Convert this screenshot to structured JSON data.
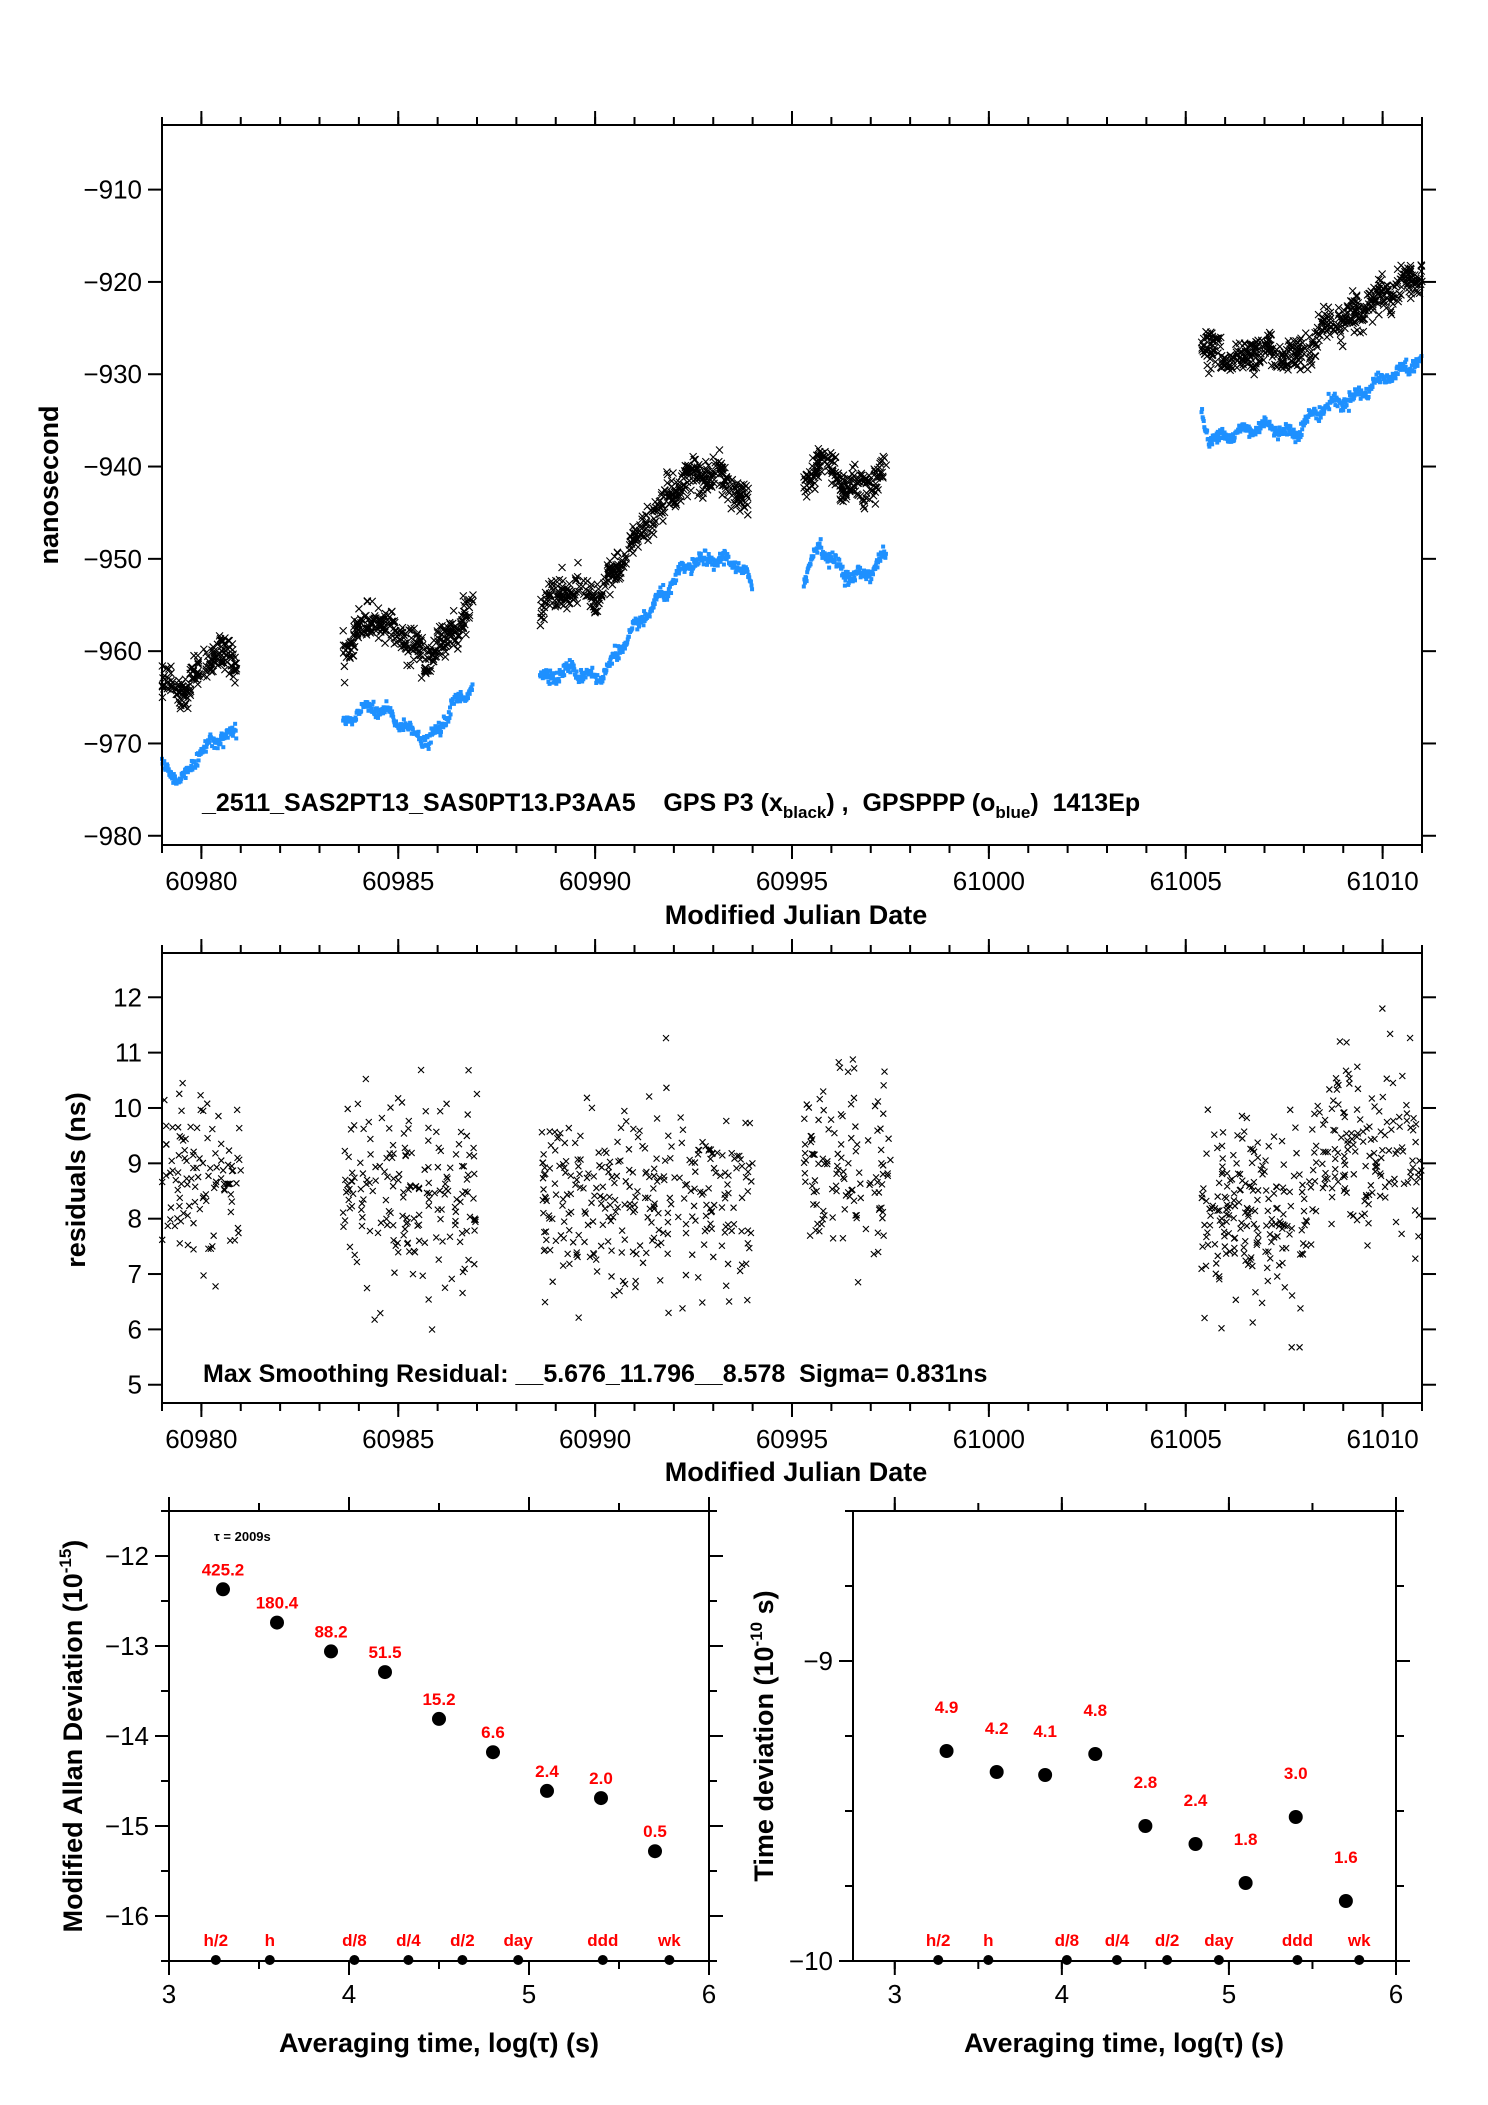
{
  "chart_data": [
    {
      "id": "phase",
      "type": "scatter",
      "title": "",
      "xlabel": "Modified Julian Date",
      "ylabel": "nanosecond",
      "xlim": [
        60979.0,
        61011.0
      ],
      "ylim": [
        -981,
        -903
      ],
      "xticks": [
        60980,
        60985,
        60990,
        60995,
        61000,
        61005,
        61010
      ],
      "xtick_labels": [
        "60980",
        "60985",
        "60990",
        "60995",
        "61000",
        "61005",
        "61010"
      ],
      "yticks": [
        -910,
        -920,
        -930,
        -940,
        -950,
        -960,
        -970,
        -980
      ],
      "ytick_labels": [
        "−910",
        "−920",
        "−930",
        "−940",
        "−950",
        "−960",
        "−970",
        "−980"
      ],
      "annotation": {
        "prefix": "_2511_SAS2PT13_SAS0PT13.P3AA5    GPS P3 (x",
        "sub1": "black",
        "mid": ") ,  GPSPPP (o",
        "sub2": "blue",
        "suffix": ")  1413Ep"
      },
      "series": [
        {
          "name": "GPS P3",
          "marker": "x",
          "color": "#000000",
          "segments": [
            {
              "x": [
                60979.0,
                60979.5,
                60979.9,
                60980.3,
                60980.9
              ],
              "y": [
                -963.5,
                -964.5,
                -962.5,
                -960.0,
                -961.0
              ]
            },
            {
              "x": [
                60983.6,
                60984.3,
                60985.0,
                60985.7,
                60986.2,
                60986.9
              ],
              "y": [
                -960.0,
                -956.5,
                -958.0,
                -961.0,
                -959.0,
                -955.0
              ]
            },
            {
              "x": [
                60988.6,
                60989.2,
                60990.2,
                60991.0,
                60991.7,
                60992.3,
                60993.2,
                60993.9
              ],
              "y": [
                -955.0,
                -953.5,
                -954.0,
                -948.0,
                -944.0,
                -941.0,
                -941.0,
                -944.0
              ]
            },
            {
              "x": [
                60995.3,
                60995.7,
                60996.3,
                60996.8,
                60997.4
              ],
              "y": [
                -942.5,
                -939.0,
                -942.0,
                -942.5,
                -940.5
              ]
            },
            {
              "x": [
                61005.4,
                61006.0,
                61007.0,
                61007.8,
                61008.5,
                61009.3,
                61010.0,
                61011.0
              ],
              "y": [
                -926.5,
                -928.5,
                -927.5,
                -928.5,
                -925.0,
                -923.5,
                -921.5,
                -919.5
              ]
            }
          ],
          "scatter_ns": 1.3
        },
        {
          "name": "GPSPPP",
          "marker": "o",
          "color": "#1e90ff",
          "segments": [
            {
              "x": [
                60979.0,
                60979.5,
                60979.9,
                60980.3,
                60980.9
              ],
              "y": [
                -972.5,
                -974.0,
                -971.5,
                -969.5,
                -969.0
              ]
            },
            {
              "x": [
                60983.6,
                60984.2,
                60984.6,
                60985.3,
                60985.8,
                60986.3,
                60986.9
              ],
              "y": [
                -968.0,
                -966.0,
                -966.5,
                -968.5,
                -970.0,
                -966.5,
                -963.5
              ]
            },
            {
              "x": [
                60988.6,
                60989.4,
                60990.1,
                60990.6,
                60991.2,
                60991.7,
                60992.4,
                60993.1,
                60993.6,
                60994.0
              ],
              "y": [
                -963.0,
                -962.0,
                -963.0,
                -960.0,
                -956.5,
                -954.0,
                -950.5,
                -950.0,
                -950.5,
                -953.0
              ]
            },
            {
              "x": [
                60995.3,
                60995.7,
                60996.3,
                60996.8,
                60997.4
              ],
              "y": [
                -952.0,
                -948.5,
                -951.5,
                -952.0,
                -949.5
              ]
            },
            {
              "x": [
                61005.4,
                61005.6,
                61006.2,
                61007.0,
                61007.7,
                61008.5,
                61009.3,
                61010.0,
                61011.0
              ],
              "y": [
                -934.5,
                -937.0,
                -936.5,
                -935.5,
                -936.5,
                -933.5,
                -932.5,
                -930.5,
                -928.5
              ]
            }
          ],
          "scatter_ns": 0.35
        }
      ]
    },
    {
      "id": "residuals",
      "type": "scatter",
      "xlabel": "Modified Julian Date",
      "ylabel": "residuals (ns)",
      "xlim": [
        60979.0,
        61011.0
      ],
      "ylim": [
        4.67,
        12.8
      ],
      "xticks": [
        60980,
        60985,
        60990,
        60995,
        61000,
        61005,
        61010
      ],
      "xtick_labels": [
        "60980",
        "60985",
        "60990",
        "60995",
        "61000",
        "61005",
        "61010"
      ],
      "yticks": [
        5,
        6,
        7,
        8,
        9,
        10,
        11,
        12
      ],
      "ytick_labels": [
        "5",
        "6",
        "7",
        "8",
        "9",
        "10",
        "11",
        "12"
      ],
      "annotation": "Max Smoothing Residual: __5.676_11.796__8.578  Sigma= 0.831ns",
      "series": [
        {
          "name": "residuals",
          "marker": "x",
          "color": "#000000",
          "segments": [
            {
              "x0": 60979.0,
              "x1": 60981.0,
              "mean": 8.7,
              "count": 110
            },
            {
              "x0": 60983.6,
              "x1": 60987.0,
              "mean": 8.5,
              "count": 190
            },
            {
              "x0": 60988.6,
              "x1": 60994.0,
              "mean": 8.3,
              "count": 300
            },
            {
              "x0": 60995.3,
              "x1": 60997.5,
              "mean": 8.9,
              "count": 120
            },
            {
              "x0": 61005.4,
              "x1": 61008.2,
              "mean": 8.1,
              "count": 200
            },
            {
              "x0": 61008.2,
              "x1": 61011.0,
              "mean": 9.2,
              "count": 160
            }
          ],
          "min": 5.676,
          "max": 11.796,
          "sigma": 0.831
        }
      ]
    },
    {
      "id": "mdev",
      "type": "scatter",
      "xlabel": "Averaging time, log(τ) (s)",
      "ylabel_main": "Modified Allan Deviation (10",
      "ylabel_sup": "-15",
      "ylabel_end": ")",
      "xlim": [
        3,
        6
      ],
      "ylim": [
        -16.5,
        -11.5
      ],
      "xticks": [
        3,
        4,
        5,
        6
      ],
      "xtick_labels": [
        "3",
        "4",
        "5",
        "6"
      ],
      "yticks": [
        -12,
        -13,
        -14,
        -15,
        -16
      ],
      "ytick_labels": [
        "−12",
        "−13",
        "−14",
        "−15",
        "−16"
      ],
      "tau_note": "τ = 2009s",
      "points": {
        "x": [
          3.3,
          3.6,
          3.9,
          4.2,
          4.5,
          4.8,
          5.1,
          5.4,
          5.7
        ],
        "y": [
          -12.37,
          -12.74,
          -13.06,
          -13.29,
          -13.81,
          -14.18,
          -14.61,
          -14.69,
          -15.28
        ],
        "labels": [
          "425.2",
          "180.4",
          "88.2",
          "51.5",
          "15.2",
          "6.6",
          "2.4",
          "2.0",
          "0.5"
        ]
      },
      "markers": {
        "x": [
          3.26,
          3.56,
          4.03,
          4.33,
          4.63,
          4.94,
          5.41,
          5.78
        ],
        "labels": [
          "h/2",
          "h",
          "d/8",
          "d/4",
          "d/2",
          "day",
          "ddd",
          "wk"
        ]
      }
    },
    {
      "id": "tdev",
      "type": "scatter",
      "xlabel": "Averaging time, log(τ) (s)",
      "ylabel_main": "Time deviation (10",
      "ylabel_sup": "-10",
      "ylabel_end": " s)",
      "xlim": [
        2.75,
        6
      ],
      "ylim": [
        -10,
        -8.5
      ],
      "xticks": [
        3,
        4,
        5,
        6
      ],
      "xtick_labels": [
        "3",
        "4",
        "5",
        "6"
      ],
      "yticks": [
        -9,
        -10
      ],
      "ytick_labels": [
        "−9",
        "−10"
      ],
      "points": {
        "x": [
          3.31,
          3.61,
          3.9,
          4.2,
          4.5,
          4.8,
          5.1,
          5.4,
          5.7
        ],
        "y": [
          -9.3,
          -9.37,
          -9.38,
          -9.31,
          -9.55,
          -9.61,
          -9.74,
          -9.52,
          -9.8
        ],
        "labels": [
          "4.9",
          "4.2",
          "4.1",
          "4.8",
          "2.8",
          "2.4",
          "1.8",
          "3.0",
          "1.6"
        ]
      },
      "markers": {
        "x": [
          3.26,
          3.56,
          4.03,
          4.33,
          4.63,
          4.94,
          5.41,
          5.78
        ],
        "labels": [
          "h/2",
          "h",
          "d/8",
          "d/4",
          "d/2",
          "day",
          "ddd",
          "wk"
        ]
      }
    }
  ]
}
